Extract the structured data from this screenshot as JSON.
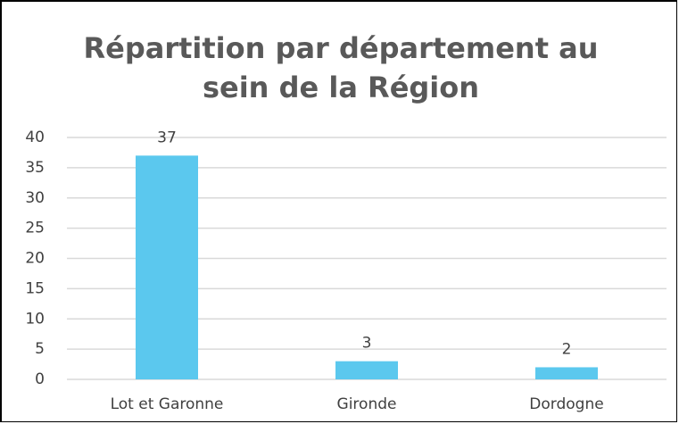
{
  "chart_data": {
    "type": "bar",
    "title": "Répartition par département au sein de la Région",
    "categories": [
      "Lot et Garonne",
      "Gironde",
      "Dordogne"
    ],
    "values": [
      37,
      3,
      2
    ],
    "color": "#5bc8ee",
    "ylim": [
      0,
      40
    ],
    "yticks": [
      0,
      5,
      10,
      15,
      20,
      25,
      30,
      35,
      40
    ],
    "grid": true
  }
}
